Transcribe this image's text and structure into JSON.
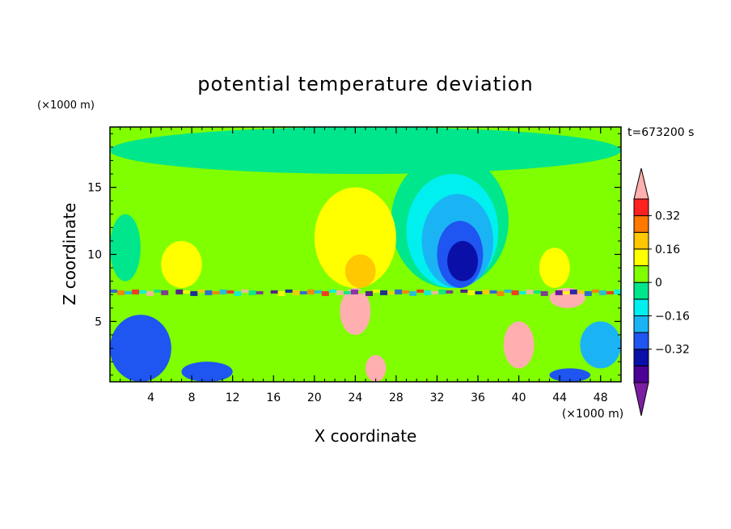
{
  "chart_data": {
    "type": "heatmap",
    "title": "potential temperature deviation",
    "xlabel": "X coordinate",
    "ylabel": "Z coordinate",
    "x_unit": "(×1000 m)",
    "y_unit": "(×1000 m)",
    "time_label": "t=673200 s",
    "xlim": [
      0,
      50
    ],
    "ylim": [
      0.5,
      19.5
    ],
    "x_ticks": [
      4,
      8,
      12,
      16,
      20,
      24,
      28,
      32,
      36,
      40,
      44,
      48
    ],
    "y_ticks": [
      5,
      10,
      15
    ],
    "colorbar": {
      "levels": [
        -0.48,
        -0.4,
        -0.32,
        -0.24,
        -0.16,
        -0.08,
        0,
        0.08,
        0.16,
        0.24,
        0.32,
        0.4
      ],
      "labels": [
        "0.32",
        "0.16",
        "0",
        "−0.16",
        "−0.32"
      ],
      "label_values": [
        0.32,
        0.16,
        0,
        -0.16,
        -0.32
      ],
      "colors": [
        "#7a1fa2",
        "#4b0096",
        "#0a0fa8",
        "#1f55f0",
        "#1ab4f5",
        "#00f0f0",
        "#00e68c",
        "#80ff00",
        "#ffff00",
        "#ffc800",
        "#ff7800",
        "#ff2020",
        "#ffafaf"
      ],
      "extend": "both"
    },
    "regions": [
      {
        "note": "background",
        "x": [
          0,
          50
        ],
        "z": [
          0.5,
          19.5
        ],
        "value": 0.04
      },
      {
        "note": "upper-left green band",
        "x": [
          0,
          50
        ],
        "z": [
          16,
          19.5
        ],
        "value": -0.02
      },
      {
        "note": "left green lobe",
        "x": [
          0,
          3
        ],
        "z": [
          8,
          13
        ],
        "value": -0.03
      },
      {
        "note": "center-right cold dome outer",
        "x": [
          27.5,
          39
        ],
        "z": [
          7.5,
          17.5
        ],
        "value": -0.05
      },
      {
        "note": "cold dome mid",
        "x": [
          29,
          38
        ],
        "z": [
          7.5,
          16
        ],
        "value": -0.12
      },
      {
        "note": "cold dome inner",
        "x": [
          30.5,
          37.5
        ],
        "z": [
          7.5,
          14.5
        ],
        "value": -0.2
      },
      {
        "note": "cold dome core",
        "x": [
          32,
          36.5
        ],
        "z": [
          7.5,
          12.5
        ],
        "value": -0.3
      },
      {
        "note": "cold dome center",
        "x": [
          33,
          36
        ],
        "z": [
          8,
          11
        ],
        "value": -0.38
      },
      {
        "note": "warm plume outer",
        "x": [
          20,
          28
        ],
        "z": [
          7.5,
          15
        ],
        "value": 0.12
      },
      {
        "note": "warm plume inner",
        "x": [
          23,
          26
        ],
        "z": [
          7.5,
          10
        ],
        "value": 0.22
      },
      {
        "note": "small warm lobe left",
        "x": [
          5,
          9
        ],
        "z": [
          7.5,
          11
        ],
        "value": 0.12
      },
      {
        "note": "small warm lobe right",
        "x": [
          42,
          45
        ],
        "z": [
          7.5,
          10.5
        ],
        "value": 0.12
      },
      {
        "note": "warm core near x=24",
        "x": [
          22.5,
          25.5
        ],
        "z": [
          4,
          7.5
        ],
        "value": 0.45
      },
      {
        "note": "warm core near x=40",
        "x": [
          38.5,
          41.5
        ],
        "z": [
          1.5,
          5
        ],
        "value": 0.45
      },
      {
        "note": "warm core near x=26",
        "x": [
          25,
          27
        ],
        "z": [
          0.5,
          2.5
        ],
        "value": 0.45
      },
      {
        "note": "warm core near x=44",
        "x": [
          43,
          46.5
        ],
        "z": [
          6,
          7.5
        ],
        "value": 0.45
      },
      {
        "note": "lower-left cold",
        "x": [
          0,
          6
        ],
        "z": [
          0.5,
          5.5
        ],
        "value": -0.32
      },
      {
        "note": "bottom cold near x=10",
        "x": [
          7,
          12
        ],
        "z": [
          0.5,
          2
        ],
        "value": -0.32
      },
      {
        "note": "bottom cold near x=44",
        "x": [
          43,
          47
        ],
        "z": [
          0.5,
          1.5
        ],
        "value": -0.32
      },
      {
        "note": "lower-right cold",
        "x": [
          46,
          50
        ],
        "z": [
          1.5,
          5
        ],
        "value": -0.2
      }
    ]
  }
}
